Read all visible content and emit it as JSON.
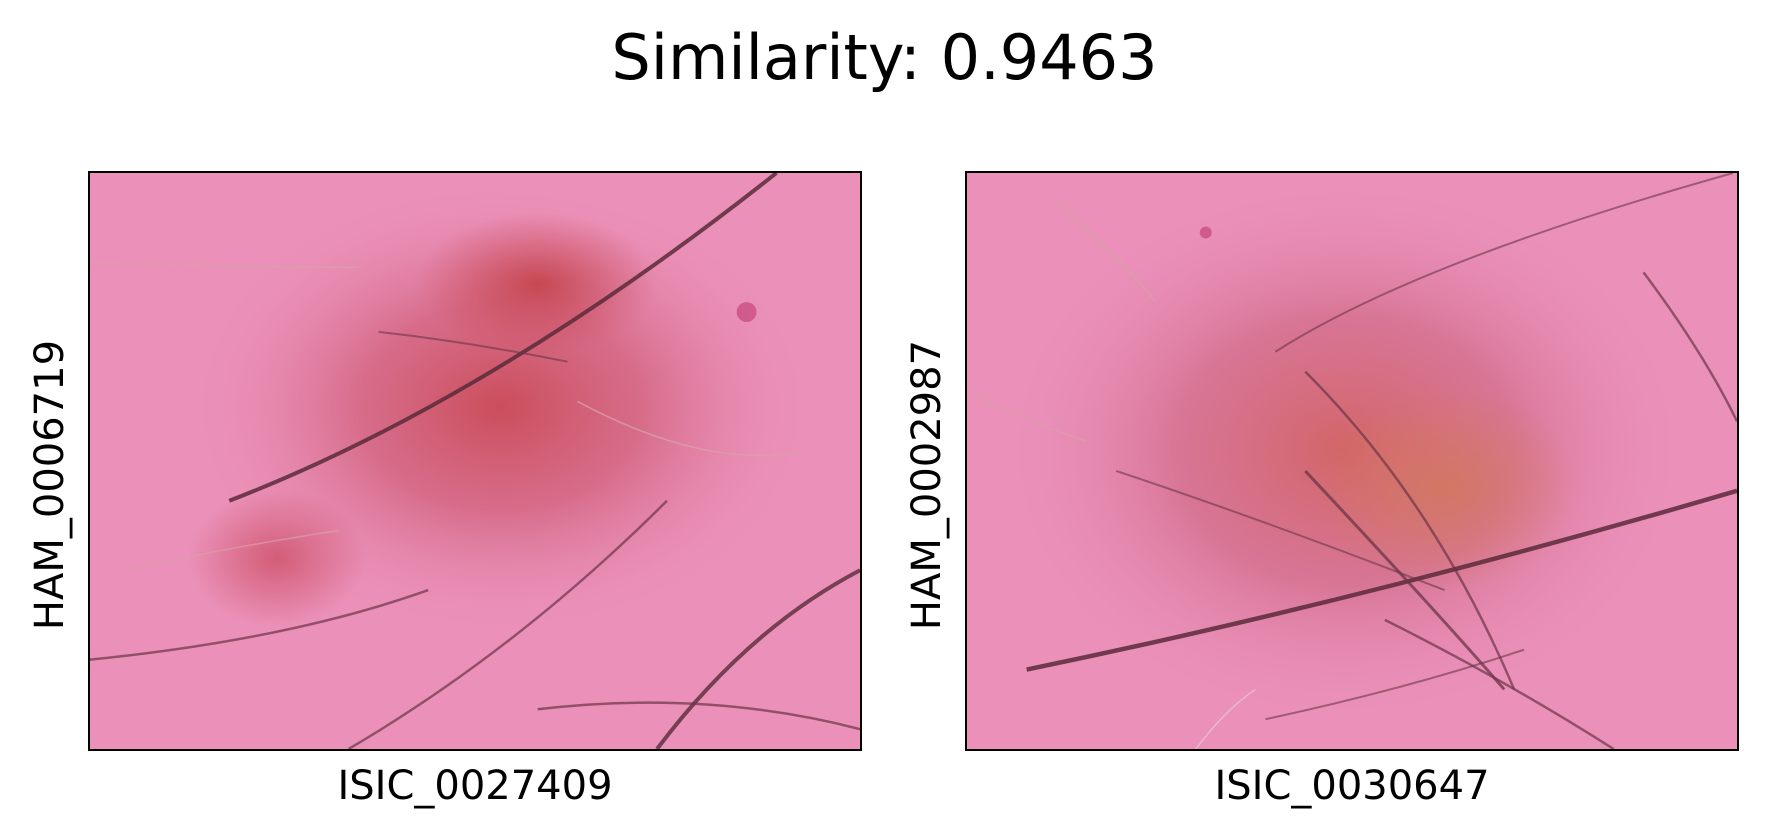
{
  "title": "Similarity: 0.9463",
  "panels": [
    {
      "ylabel": "HAM_0006719",
      "xlabel": "ISIC_0027409",
      "image_content": "dermoscopy-lesion-image"
    },
    {
      "ylabel": "HAM_0002987",
      "xlabel": "ISIC_0030647",
      "image_content": "dermoscopy-lesion-image"
    }
  ],
  "colors": {
    "skin_base": "#e98cb6",
    "lesion_core": "#c8454f",
    "lesion_mid": "#d0667e",
    "hair": "#5a2a3a",
    "frame": "#000000"
  }
}
